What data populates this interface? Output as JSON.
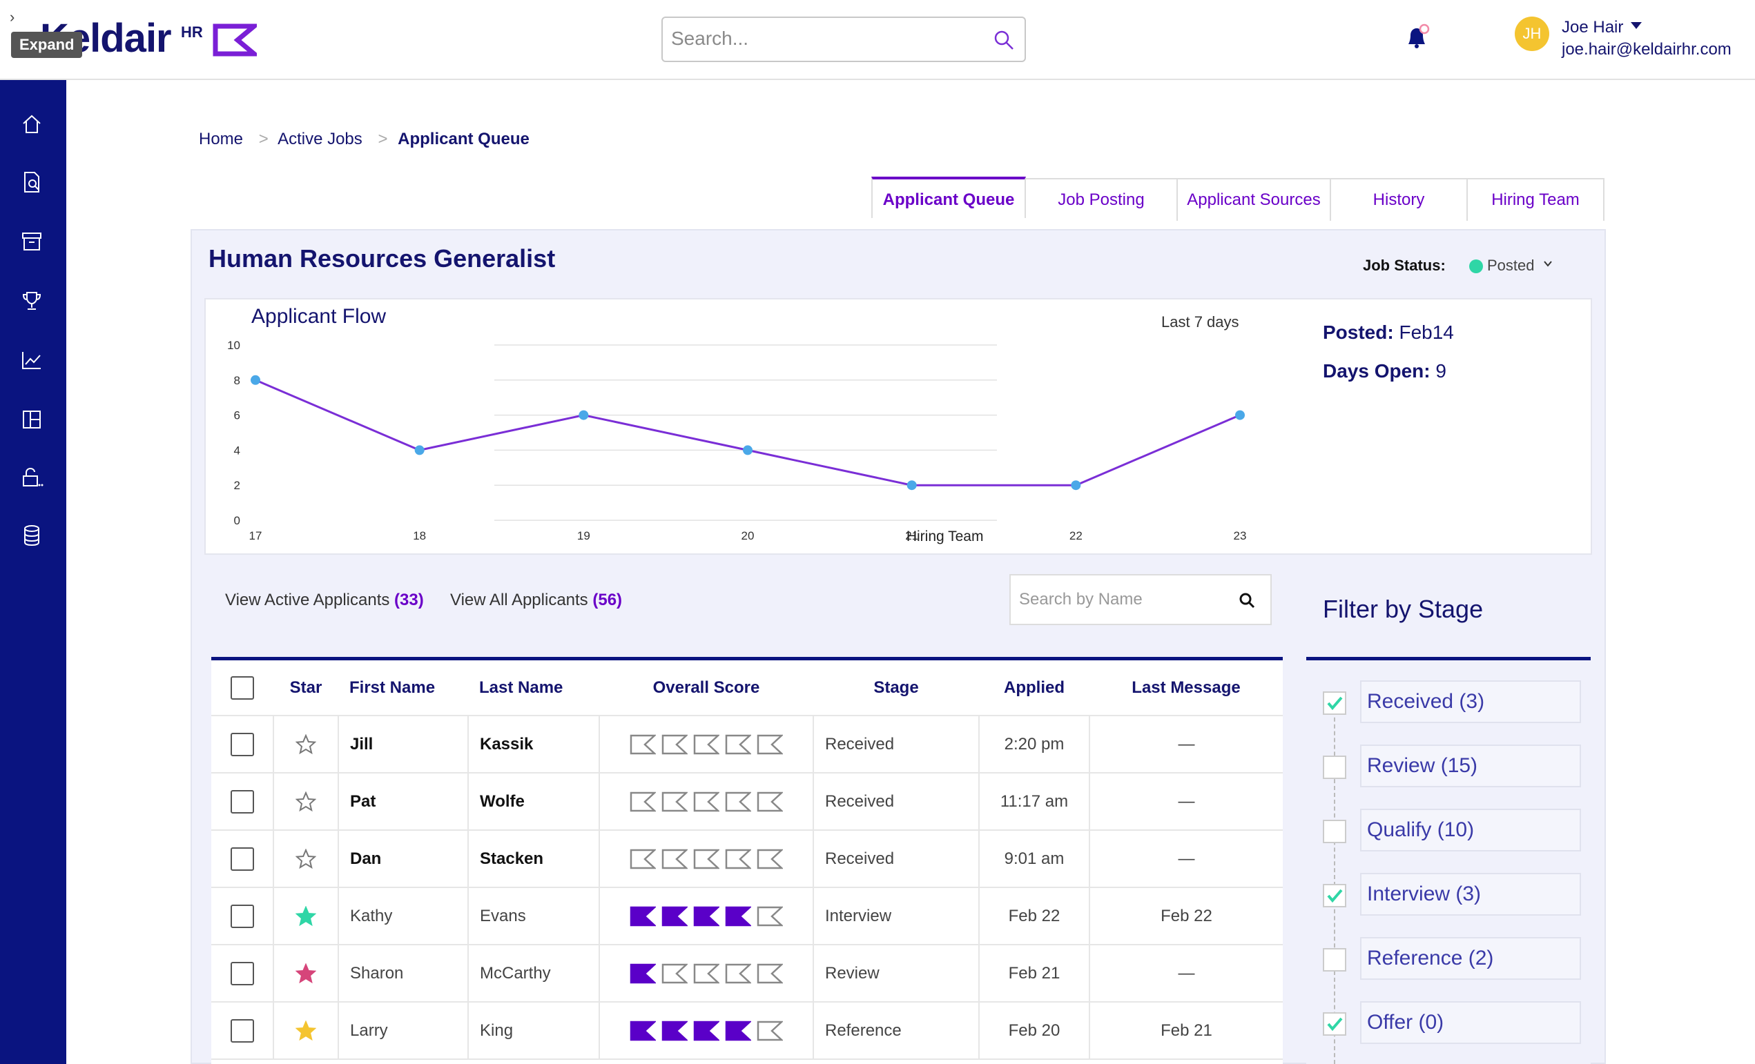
{
  "header": {
    "expand_tooltip": "Expand",
    "logo_text": "Keldair",
    "logo_suffix": "HR",
    "search_placeholder": "Search...",
    "user": {
      "initials": "JH",
      "name": "Joe Hair",
      "email": "joe.hair@keldairhr.com"
    }
  },
  "sidebar": {
    "items": [
      "home-icon",
      "document-search-icon",
      "archive-icon",
      "trophy-icon",
      "trending-chart-icon",
      "layout-grid-icon",
      "lock-open-icon",
      "database-icon"
    ]
  },
  "breadcrumb": {
    "items": [
      "Home",
      "Active Jobs"
    ],
    "current": "Applicant Queue",
    "separator": ">"
  },
  "tabs": [
    "Applicant Queue",
    "Job Posting",
    "Applicant Sources",
    "History",
    "Hiring Team"
  ],
  "job": {
    "title": "Human Resources Generalist",
    "status_label": "Job Status:",
    "status_value": "Posted",
    "status_color": "#2fd6a6",
    "posted_label": "Posted:",
    "posted_value": "Feb14",
    "days_open_label": "Days Open:",
    "days_open_value": "9"
  },
  "chart_data": {
    "type": "line",
    "title": "Applicant Flow",
    "range_label": "Last 7 days",
    "categories": [
      "17",
      "18",
      "19",
      "20",
      "21",
      "22",
      "23"
    ],
    "overlay_label": "Hiring Team",
    "values": [
      8,
      4,
      6,
      4,
      2,
      2,
      6
    ],
    "ylim": [
      0,
      10
    ],
    "yticks": [
      "0",
      "2",
      "4",
      "6",
      "8",
      "10"
    ],
    "line_color": "#7a2ed6",
    "point_color": "#4aa8e8"
  },
  "applicants": {
    "view_active_label": "View Active Applicants",
    "view_active_count": "(33)",
    "view_all_label": "View All Applicants",
    "view_all_count": "(56)",
    "search_placeholder": "Search by Name",
    "columns": [
      "Star",
      "First Name",
      "Last Name",
      "Overall Score",
      "Stage",
      "Applied",
      "Last Message"
    ],
    "rows": [
      {
        "first": "Jill",
        "last": "Kassik",
        "score": 0,
        "stage": "Received",
        "applied": "2:20 pm",
        "message": "—",
        "star": "empty",
        "new": true
      },
      {
        "first": "Pat",
        "last": "Wolfe",
        "score": 0,
        "stage": "Received",
        "applied": "11:17 am",
        "message": "—",
        "star": "empty",
        "new": true
      },
      {
        "first": "Dan",
        "last": "Stacken",
        "score": 0,
        "stage": "Received",
        "applied": "9:01 am",
        "message": "—",
        "star": "empty",
        "new": true
      },
      {
        "first": "Kathy",
        "last": "Evans",
        "score": 4,
        "stage": "Interview",
        "applied": "Feb 22",
        "message": "Feb 22",
        "star": "#2fd6a6",
        "new": false
      },
      {
        "first": "Sharon",
        "last": "McCarthy",
        "score": 1,
        "stage": "Review",
        "applied": "Feb 21",
        "message": "—",
        "star": "#d6457a",
        "new": false
      },
      {
        "first": "Larry",
        "last": "King",
        "score": 4,
        "stage": "Reference",
        "applied": "Feb 20",
        "message": "Feb 21",
        "star": "#f4c430",
        "new": false
      }
    ]
  },
  "filter": {
    "title": "Filter by Stage",
    "stages": [
      {
        "label": "Received (3)",
        "checked": true
      },
      {
        "label": "Review (15)",
        "checked": false
      },
      {
        "label": "Qualify (10)",
        "checked": false
      },
      {
        "label": "Interview (3)",
        "checked": true
      },
      {
        "label": "Reference (2)",
        "checked": false
      },
      {
        "label": "Offer (0)",
        "checked": true
      }
    ]
  },
  "colors": {
    "brand_navy": "#0a1480",
    "accent_purple": "#6a00c8",
    "check_teal": "#2fd6a6"
  }
}
